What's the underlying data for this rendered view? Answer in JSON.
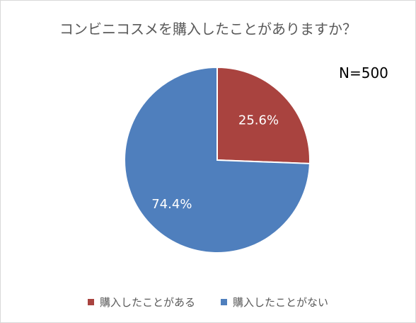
{
  "chart_data": {
    "type": "pie",
    "title": "コンビニコスメを購入したことがありますか？",
    "annotation": "N=500",
    "slices": [
      {
        "name": "購入したことがある",
        "value": 25.6,
        "label": "25.6%",
        "color": "#a9433f"
      },
      {
        "name": "購入したことがない",
        "value": 74.4,
        "label": "74.4%",
        "color": "#4f7fbd"
      }
    ],
    "legend_position": "bottom",
    "start_angle": "12 o'clock",
    "direction": "clockwise"
  }
}
